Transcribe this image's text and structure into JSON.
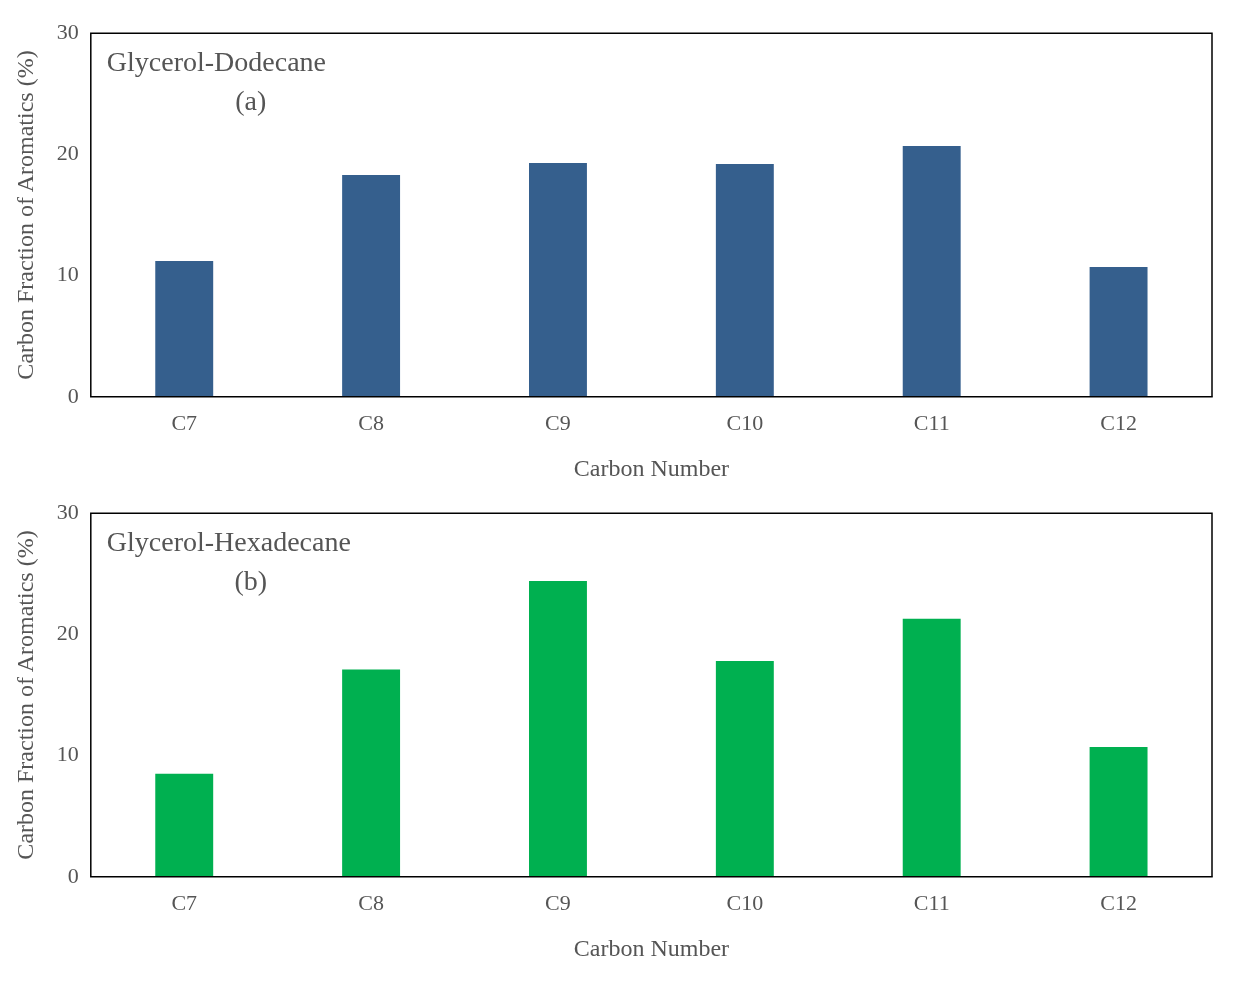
{
  "chart_data": [
    {
      "type": "bar",
      "title": "Glycerol-Dodecane",
      "subtitle": "(a)",
      "xlabel": "Carbon Number",
      "ylabel": "Carbon Fraction of Aromatics (%)",
      "categories": [
        "C7",
        "C8",
        "C9",
        "C10",
        "C11",
        "C12"
      ],
      "values": [
        11.2,
        18.3,
        19.3,
        19.2,
        20.7,
        10.7
      ],
      "color": "#355f8d",
      "ylim": [
        0,
        30
      ],
      "yticks": [
        0,
        10,
        20,
        30
      ],
      "grid": false,
      "legend": false
    },
    {
      "type": "bar",
      "title": "Glycerol-Hexadecane",
      "subtitle": "(b)",
      "xlabel": "Carbon Number",
      "ylabel": "Carbon Fraction of Aromatics (%)",
      "categories": [
        "C7",
        "C8",
        "C9",
        "C10",
        "C11",
        "C12"
      ],
      "values": [
        8.5,
        17.1,
        24.4,
        17.8,
        21.3,
        10.7
      ],
      "color": "#00b050",
      "ylim": [
        0,
        30
      ],
      "yticks": [
        0,
        10,
        20,
        30
      ],
      "grid": false,
      "legend": false
    }
  ]
}
